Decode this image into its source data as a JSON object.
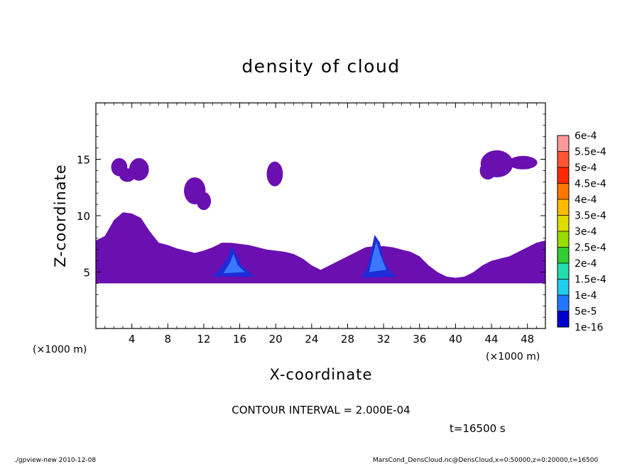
{
  "chart_data": {
    "type": "heatmap",
    "title": "density of cloud",
    "xlabel": "X-coordinate",
    "ylabel": "Z-coordinate",
    "x_unit_left": "(×1000 m)",
    "x_unit_right": "(×1000 m)",
    "xlim": [
      0,
      50
    ],
    "ylim": [
      0,
      20
    ],
    "xticks": [
      "4",
      "8",
      "12",
      "16",
      "20",
      "24",
      "28",
      "32",
      "36",
      "40",
      "44",
      "48"
    ],
    "yticks": [
      "5",
      "10",
      "15"
    ],
    "contour_interval_text": "CONTOUR INTERVAL = 2.000E-04",
    "time_text": "t=16500 s",
    "footer_left": "./gpview-new   2010-12-08",
    "footer_right": "MarsCond_DensCloud.nc@DensCloud,x=0:50000,z=0:20000,t=16500",
    "colorbar": {
      "levels": [
        "6e-4",
        "5.5e-4",
        "5e-4",
        "4.5e-4",
        "4e-4",
        "3.5e-4",
        "3e-4",
        "2.5e-4",
        "2e-4",
        "1.5e-4",
        "1e-4",
        "5e-5",
        "1e-16"
      ],
      "colors": [
        "#ff9999",
        "#ff5533",
        "#ff2a00",
        "#ff7700",
        "#ffbb00",
        "#dddd00",
        "#99dd00",
        "#33cc33",
        "#22ddaa",
        "#22ccee",
        "#2277ff",
        "#0000cc",
        "#6600aa"
      ]
    },
    "regions": [
      {
        "name": "base-layer",
        "x": [
          0,
          50
        ],
        "z": [
          4,
          7
        ],
        "level": "1e-16"
      },
      {
        "name": "cloud-3km",
        "x": [
          0.5,
          6
        ],
        "z": [
          6,
          10.3
        ],
        "level": "1e-16"
      },
      {
        "name": "patch-15km-a",
        "x": [
          1.5,
          6
        ],
        "z": [
          13,
          15
        ],
        "level": "1e-16"
      },
      {
        "name": "patch-12km",
        "x": [
          9.5,
          13
        ],
        "z": [
          10.8,
          13.2
        ],
        "level": "1e-16"
      },
      {
        "name": "patch-14km",
        "x": [
          19,
          21
        ],
        "z": [
          12.5,
          14.8
        ],
        "level": "1e-16"
      },
      {
        "name": "patch-14km-east",
        "x": [
          42,
          49.5
        ],
        "z": [
          13.2,
          16
        ],
        "level": "1e-16"
      },
      {
        "name": "core-15km",
        "x": [
          13,
          17.5
        ],
        "z": [
          4.5,
          7.5
        ],
        "level": "5e-5"
      },
      {
        "name": "core-31km",
        "x": [
          29.5,
          33.5
        ],
        "z": [
          4.5,
          8.5
        ],
        "level": "5e-5"
      }
    ],
    "max_value": "1e-4",
    "grid": false,
    "legend_position": "right"
  },
  "colors": {
    "background": "#ffffff",
    "cloud_base": "#6a0fb0",
    "cloud_mid": "#1e2bd8",
    "cloud_core": "#3a78ff"
  }
}
